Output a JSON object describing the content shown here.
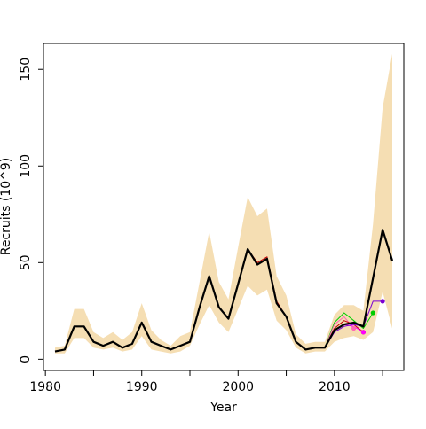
{
  "chart_data": {
    "type": "line",
    "xlabel": "Year",
    "ylabel": "Recruits (10^9)",
    "xlim": [
      1979.8,
      2017.2
    ],
    "ylim": [
      -5.8,
      163.4
    ],
    "x_ticks": [
      1980,
      1990,
      2000,
      2010
    ],
    "x_minor_ticks": [
      1985,
      1995,
      2005,
      2015
    ],
    "y_ticks": [
      0,
      50,
      100,
      150
    ],
    "grid": false,
    "legend": "none",
    "band": {
      "color": "#f5deb3",
      "x": [
        1981,
        1982,
        1983,
        1984,
        1985,
        1986,
        1987,
        1988,
        1989,
        1990,
        1991,
        1992,
        1993,
        1994,
        1995,
        1996,
        1997,
        1998,
        1999,
        2000,
        2001,
        2002,
        2003,
        2004,
        2005,
        2006,
        2007,
        2008,
        2009,
        2010,
        2011,
        2012,
        2013,
        2014,
        2015,
        2016
      ],
      "upper": [
        6,
        7,
        26,
        26,
        14,
        11,
        14,
        10,
        14,
        29,
        15,
        10,
        7,
        12,
        14,
        40,
        66,
        40,
        31,
        58,
        84,
        74,
        78,
        43,
        33,
        13,
        8,
        9,
        9,
        23,
        28,
        28,
        25,
        70,
        130,
        158
      ],
      "lower": [
        3,
        3,
        11,
        11,
        6,
        5,
        6,
        4,
        5,
        12,
        5,
        4,
        3,
        4,
        7,
        18,
        28,
        19,
        14,
        26,
        38,
        33,
        36,
        20,
        15,
        6,
        3,
        4,
        4,
        9,
        11,
        12,
        10,
        14,
        35,
        16
      ]
    },
    "series": [
      {
        "color": "#000000",
        "x": [
          1981,
          1982,
          1983,
          1984,
          1985,
          1986,
          1987,
          1988,
          1989,
          1990,
          1991,
          1992,
          1993,
          1994,
          1995,
          1996,
          1997,
          1998,
          1999,
          2000,
          2001,
          2002,
          2003,
          2004,
          2005,
          2006,
          2007,
          2008,
          2009,
          2010,
          2011,
          2012,
          2013,
          2014,
          2015,
          2016
        ],
        "values": [
          4,
          5,
          17,
          17,
          9,
          7,
          9,
          6,
          8,
          19,
          9,
          7,
          5,
          7,
          9,
          27,
          43,
          27,
          21,
          39,
          57,
          49,
          52,
          29,
          22,
          9,
          5,
          6,
          6,
          15,
          18,
          19,
          17,
          42,
          67,
          51
        ]
      },
      {
        "color": "#00cc00",
        "x": [
          2009,
          2010,
          2011,
          2012,
          2013,
          2014
        ],
        "values": [
          6,
          19,
          24,
          20,
          16,
          24
        ],
        "end_point": true
      },
      {
        "color": "#ff69b4",
        "x": [
          2009,
          2010,
          2011,
          2012
        ],
        "values": [
          6,
          18,
          22,
          16
        ],
        "end_point": true
      },
      {
        "color": "#c00000",
        "x": [
          2009,
          2010,
          2011,
          2012,
          2013
        ],
        "values": [
          6,
          16,
          20,
          18,
          14
        ],
        "end_point": true
      },
      {
        "color": "#ff00ff",
        "x": [
          2009,
          2010,
          2011,
          2012,
          2013
        ],
        "values": [
          6,
          15,
          18,
          17,
          14
        ],
        "end_point": true
      },
      {
        "color": "#7b00d4",
        "x": [
          2009,
          2010,
          2011,
          2012,
          2013,
          2014,
          2015
        ],
        "values": [
          6,
          14,
          17,
          18,
          17,
          30,
          30
        ],
        "end_point": true
      },
      {
        "color": "#c00000",
        "x": [
          1981,
          1982,
          1983,
          1984,
          1985,
          1986,
          1987,
          1988,
          1989,
          1990,
          1991,
          1992,
          1993,
          1994,
          1995,
          1996,
          1997,
          1998,
          1999,
          2000,
          2001,
          2002,
          2003,
          2004,
          2005,
          2006,
          2007,
          2008
        ],
        "values": [
          4,
          5,
          17,
          17,
          9,
          7,
          9,
          6,
          8,
          19,
          9,
          7,
          5,
          7,
          9,
          27,
          43,
          27,
          21,
          39,
          57,
          50,
          53,
          30,
          22,
          9,
          5,
          6
        ]
      }
    ]
  }
}
